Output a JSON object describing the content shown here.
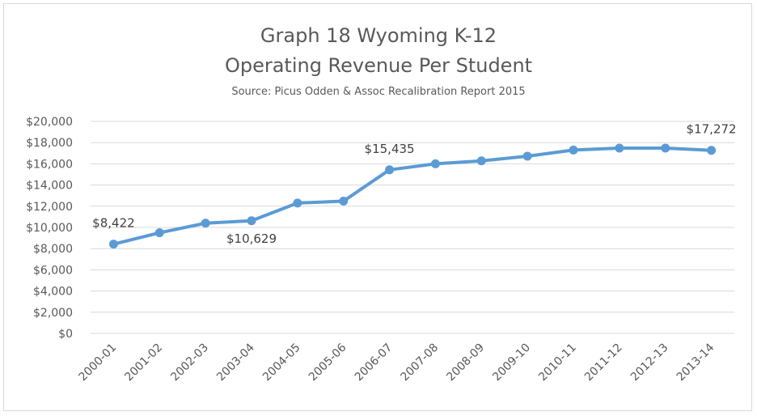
{
  "chart_data": {
    "type": "line",
    "title_line1": "Graph 18 Wyoming K-12",
    "title_line2": "Operating Revenue Per Student",
    "subtitle": "Source: Picus Odden & Assoc Recalibration Report 2015",
    "categories": [
      "2000-01",
      "2001-02",
      "2002-03",
      "2003-04",
      "2004-05",
      "2005-06",
      "2006-07",
      "2007-08",
      "2008-09",
      "2009-10",
      "2010-11",
      "2011-12",
      "2012-13",
      "2013-14"
    ],
    "series": [
      {
        "values": [
          8422,
          9500,
          10400,
          10629,
          12300,
          12480,
          15435,
          16000,
          16280,
          16720,
          17300,
          17480,
          17480,
          17272
        ]
      }
    ],
    "ylim": [
      0,
      20000
    ],
    "y_ticks": [
      0,
      2000,
      4000,
      6000,
      8000,
      10000,
      12000,
      14000,
      16000,
      18000,
      20000
    ],
    "y_tick_labels": [
      "$0",
      "$2,000",
      "$4,000",
      "$6,000",
      "$8,000",
      "$10,000",
      "$12,000",
      "$14,000",
      "$16,000",
      "$18,000",
      "$20,000"
    ],
    "data_labels": [
      {
        "index": 0,
        "text": "$8,422",
        "position": "above"
      },
      {
        "index": 3,
        "text": "$10,629",
        "position": "below"
      },
      {
        "index": 6,
        "text": "$15,435",
        "position": "above"
      },
      {
        "index": 13,
        "text": "$17,272",
        "position": "above"
      }
    ],
    "grid": true,
    "line_color": "#5b9bd5"
  }
}
